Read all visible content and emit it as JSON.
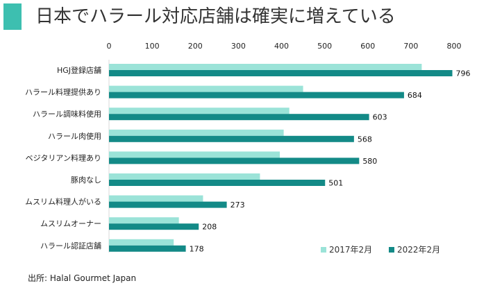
{
  "title": "日本でハラール対応店舗は確実に増えている",
  "source": "出所: Halal Gourmet Japan",
  "colors": {
    "accent": "#3dbfb0",
    "series_2017": "#9be3d8",
    "series_2022": "#138a87"
  },
  "chart_data": {
    "type": "bar",
    "orientation": "horizontal",
    "categories": [
      "HGJ登録店舗",
      "ハラール料理提供あり",
      "ハラール調味料使用",
      "ハラール肉使用",
      "ベジタリアン料理あり",
      "豚肉なし",
      "ムスリム料理人がいる",
      "ムスリムオーナー",
      "ハラール認証店舗"
    ],
    "series": [
      {
        "name": "2017年2月",
        "values": [
          725,
          450,
          418,
          405,
          396,
          350,
          218,
          162,
          150
        ]
      },
      {
        "name": "2022年2月",
        "values": [
          796,
          684,
          603,
          568,
          580,
          501,
          273,
          208,
          178
        ]
      }
    ],
    "data_labels_series": "2022年2月",
    "xlim": [
      0,
      800
    ],
    "xticks": [
      0,
      100,
      200,
      300,
      400,
      500,
      600,
      700,
      800
    ],
    "axis_position": "top",
    "grid": false,
    "legend_position": "bottom-right"
  }
}
